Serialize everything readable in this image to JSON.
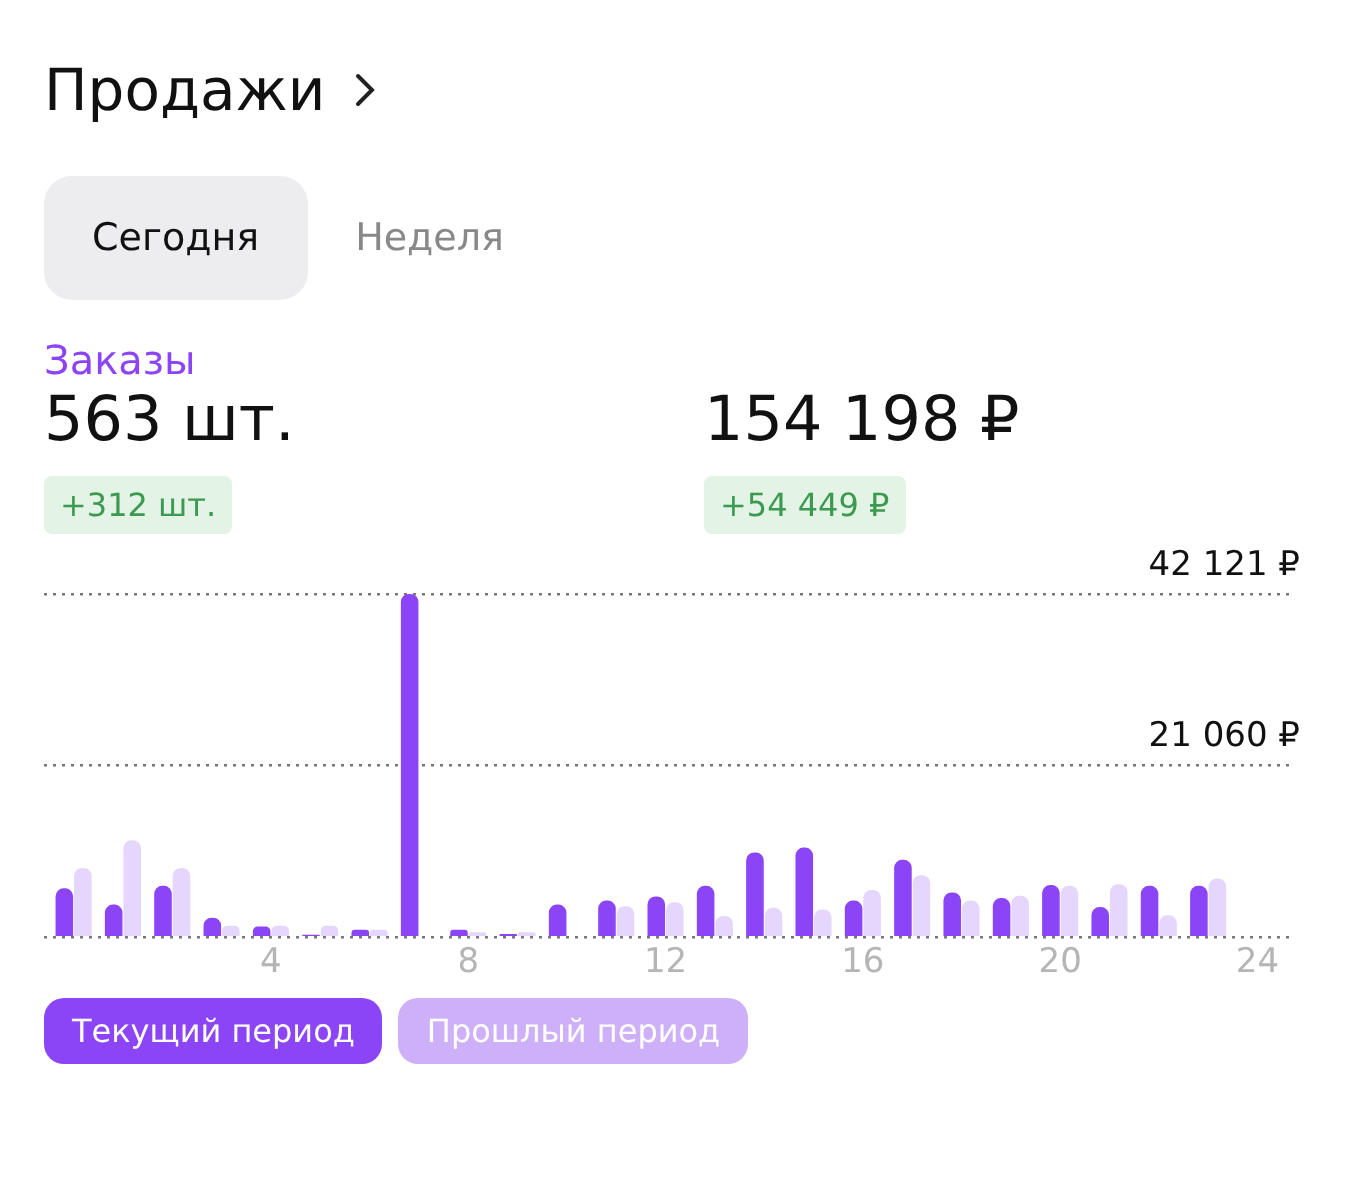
{
  "chart_data": {
    "type": "bar",
    "title": "Продажи",
    "subtitle": "Заказы",
    "annotations": [
      "Сегодня",
      "Неделя",
      "563 шт.",
      "154 198 ₽",
      "+312 шт.",
      "+54 449 ₽"
    ],
    "x": [
      0,
      1,
      2,
      3,
      4,
      5,
      6,
      7,
      8,
      9,
      10,
      11,
      12,
      13,
      14,
      15,
      16,
      17,
      18,
      19,
      20,
      21,
      22,
      23
    ],
    "series": [
      {
        "name": "Текущий период",
        "color": "#8c44f7",
        "values": [
          6000,
          4000,
          6300,
          2400,
          1300,
          300,
          900,
          42121,
          900,
          400,
          4000,
          4500,
          5000,
          6300,
          10400,
          11000,
          4500,
          9500,
          5500,
          4800,
          6400,
          3700,
          6300,
          6300
        ]
      },
      {
        "name": "Прошлый период",
        "color": "#e4d6fc",
        "values": [
          8500,
          11900,
          8500,
          1400,
          1400,
          1400,
          900,
          null,
          600,
          600,
          null,
          3800,
          4300,
          2600,
          3600,
          3400,
          5800,
          7600,
          4500,
          5100,
          6300,
          6500,
          2700,
          7200
        ]
      }
    ],
    "xlim": [
      -0.6,
      24.7
    ],
    "xticks": [
      4,
      8,
      12,
      16,
      20,
      24
    ],
    "ylim": [
      0,
      42121
    ],
    "yticks": [
      {
        "value": 0,
        "label": null
      },
      {
        "value": 21060,
        "label": "21 060 ₽"
      },
      {
        "value": 42121,
        "label": "42 121 ₽"
      }
    ],
    "grid": "y",
    "legend": "bottom"
  }
}
